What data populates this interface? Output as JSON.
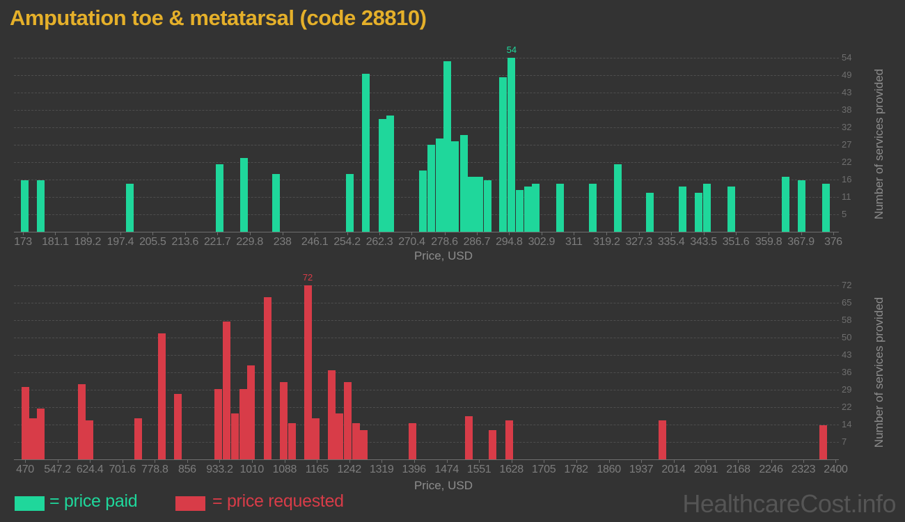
{
  "page": {
    "title": "Amputation toe & metatarsal (code 28810)",
    "watermark": "HealthcareCost.info"
  },
  "colors": {
    "background": "#333333",
    "title_gold": "#e5b02a",
    "paid_green": "#1fd79b",
    "requested_red": "#d83c48"
  },
  "legend": {
    "paid_label": "= price paid",
    "requested_label": "= price requested"
  },
  "chart_data": [
    {
      "type": "bar",
      "series": "price paid",
      "color": "#1fd79b",
      "xlabel": "Price, USD",
      "ylabel": "Number of services provided",
      "xlim": [
        173,
        376
      ],
      "ylim": [
        0,
        54
      ],
      "grid": true,
      "peak_label": "54",
      "x_ticks": [
        "173",
        "181.1",
        "189.2",
        "197.4",
        "205.5",
        "213.6",
        "221.7",
        "229.8",
        "238",
        "246.1",
        "254.2",
        "262.3",
        "270.4",
        "278.6",
        "286.7",
        "294.8",
        "302.9",
        "311",
        "319.2",
        "327.3",
        "335.4",
        "343.5",
        "351.6",
        "359.8",
        "367.9",
        "376"
      ],
      "y_ticks": [
        "54",
        "49",
        "43",
        "38",
        "32",
        "27",
        "22",
        "16",
        "11",
        "5"
      ],
      "points": [
        [
          173.4,
          16
        ],
        [
          177.5,
          16
        ],
        [
          199.8,
          15
        ],
        [
          222.3,
          21
        ],
        [
          228.4,
          23
        ],
        [
          236.4,
          18
        ],
        [
          254.9,
          18
        ],
        [
          258.9,
          49
        ],
        [
          263.0,
          35
        ],
        [
          265.0,
          36
        ],
        [
          273.2,
          19
        ],
        [
          275.2,
          27
        ],
        [
          277.3,
          29
        ],
        [
          279.3,
          53
        ],
        [
          281.3,
          28
        ],
        [
          283.4,
          30
        ],
        [
          285.4,
          17
        ],
        [
          287.4,
          17
        ],
        [
          289.4,
          16
        ],
        [
          293.3,
          48
        ],
        [
          295.4,
          54
        ],
        [
          297.4,
          13
        ],
        [
          299.5,
          14
        ],
        [
          301.5,
          15
        ],
        [
          307.6,
          15
        ],
        [
          315.8,
          15
        ],
        [
          322.0,
          21
        ],
        [
          330.1,
          12
        ],
        [
          338.3,
          14
        ],
        [
          342.3,
          12
        ],
        [
          344.4,
          15
        ],
        [
          350.4,
          14
        ],
        [
          364.0,
          17
        ],
        [
          368.1,
          16
        ],
        [
          374.1,
          15
        ]
      ]
    },
    {
      "type": "bar",
      "series": "price requested",
      "color": "#d83c48",
      "xlabel": "Price, USD",
      "ylabel": "Number of services provided",
      "xlim": [
        470,
        2400
      ],
      "ylim": [
        0,
        72
      ],
      "grid": true,
      "peak_label": "72",
      "x_ticks": [
        "470",
        "547.2",
        "624.4",
        "701.6",
        "778.8",
        "856",
        "933.2",
        "1010",
        "1088",
        "1165",
        "1242",
        "1319",
        "1396",
        "1474",
        "1551",
        "1628",
        "1705",
        "1782",
        "1860",
        "1937",
        "2014",
        "2091",
        "2168",
        "2246",
        "2323",
        "2400"
      ],
      "y_ticks": [
        "72",
        "65",
        "58",
        "50",
        "43",
        "36",
        "29",
        "22",
        "14",
        "7"
      ],
      "points": [
        [
          470,
          30
        ],
        [
          489,
          17
        ],
        [
          508,
          21
        ],
        [
          605,
          31
        ],
        [
          624,
          16
        ],
        [
          739,
          17
        ],
        [
          796,
          52
        ],
        [
          834,
          27
        ],
        [
          930,
          29
        ],
        [
          949,
          57
        ],
        [
          970,
          19
        ],
        [
          989,
          29
        ],
        [
          1008,
          39
        ],
        [
          1047,
          67
        ],
        [
          1085,
          32
        ],
        [
          1105,
          15
        ],
        [
          1143,
          72
        ],
        [
          1162,
          17
        ],
        [
          1200,
          37
        ],
        [
          1219,
          19
        ],
        [
          1238,
          32
        ],
        [
          1258,
          15
        ],
        [
          1277,
          12
        ],
        [
          1392,
          15
        ],
        [
          1527,
          18
        ],
        [
          1583,
          12
        ],
        [
          1623,
          16
        ],
        [
          1988,
          16
        ],
        [
          2371,
          14
        ]
      ]
    }
  ]
}
